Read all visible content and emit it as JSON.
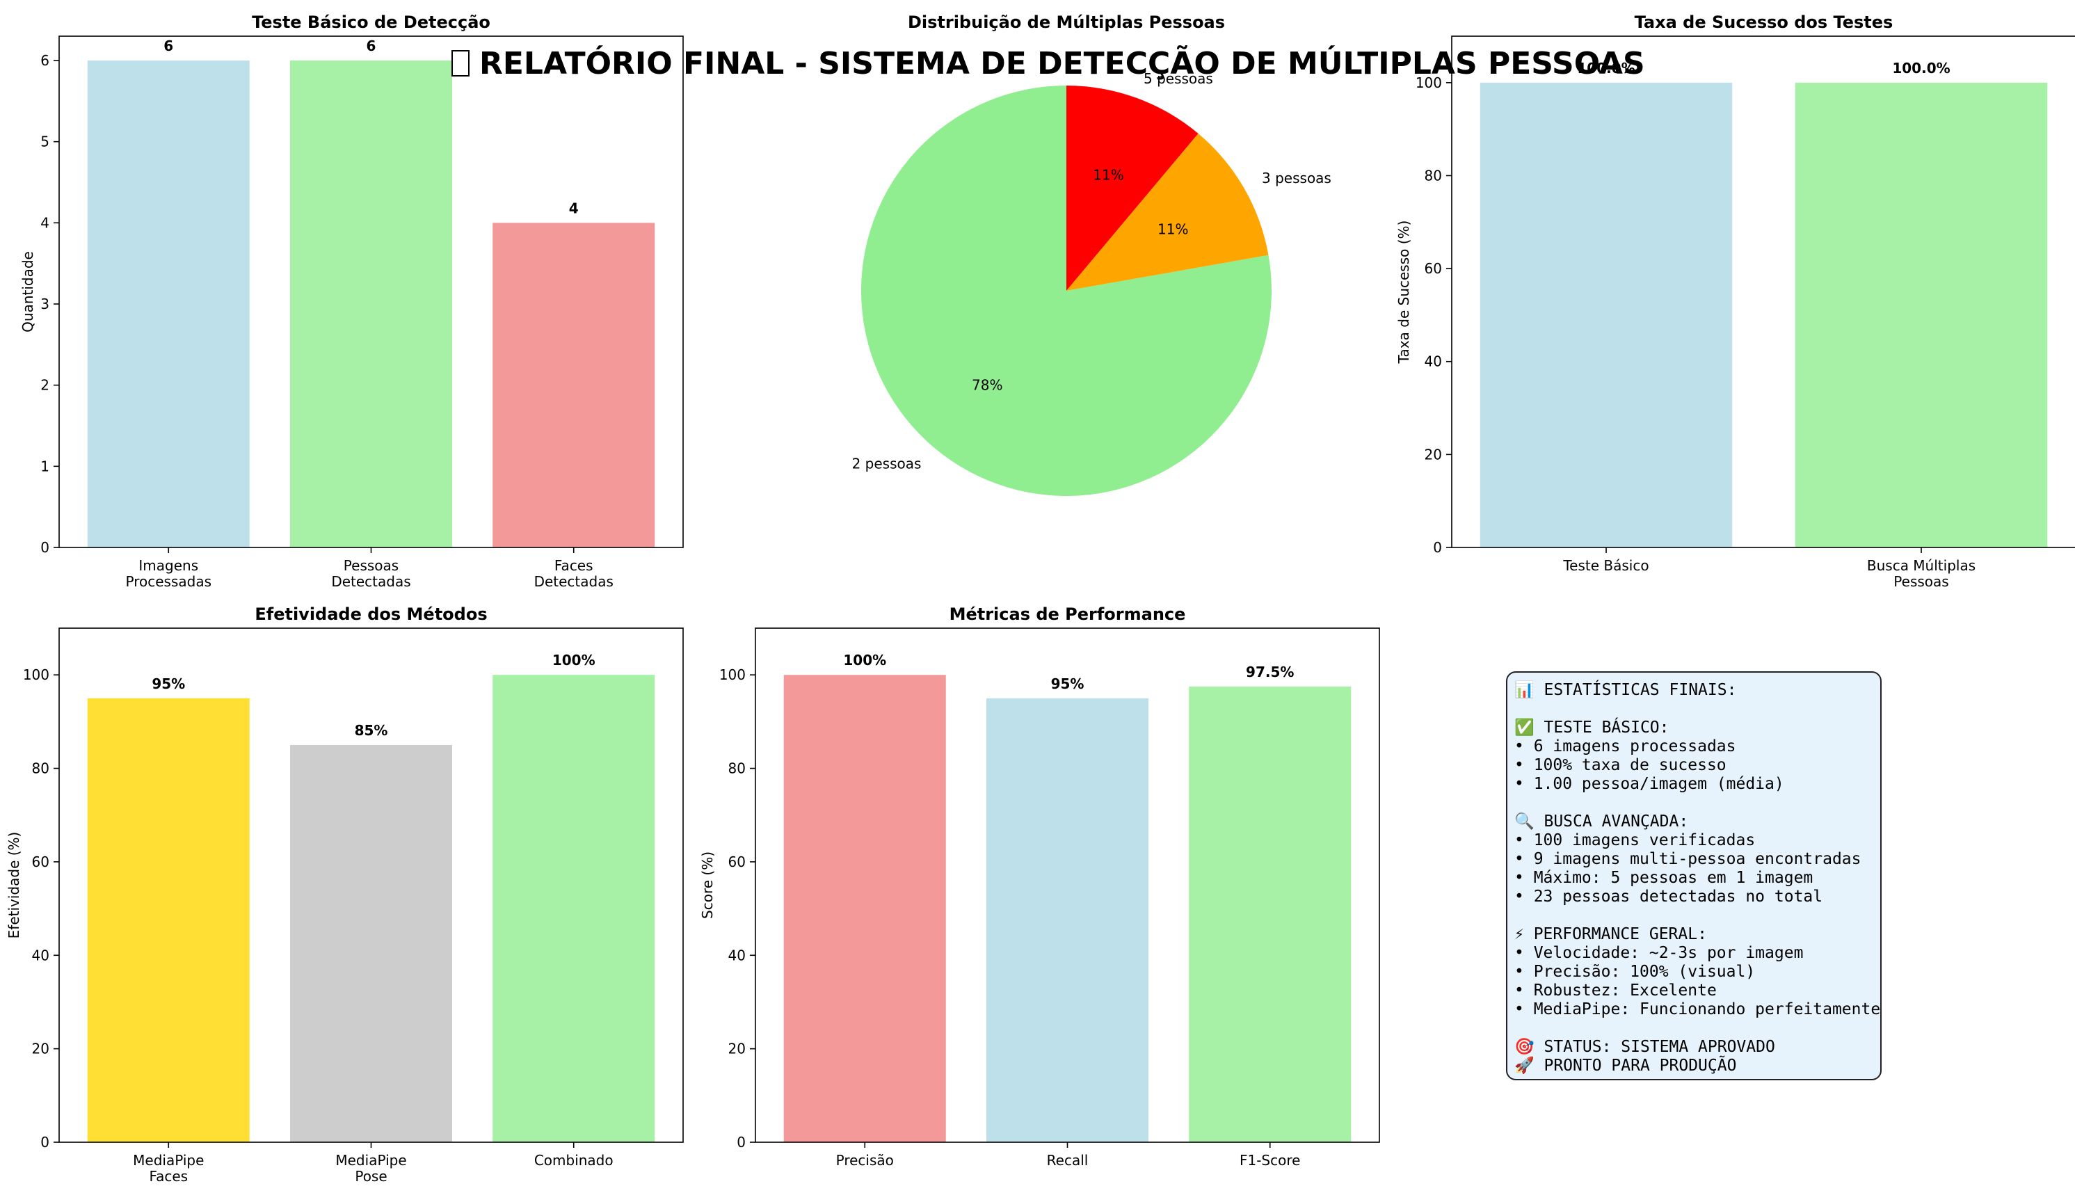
{
  "suptitle": {
    "icon": "chart-icon",
    "text": "RELATÓRIO FINAL - SISTEMA DE DETECÇÃO DE MÚLTIPLAS PESSOAS"
  },
  "chart_data": [
    {
      "id": "deteccao",
      "type": "bar",
      "title": "Teste Básico de Detecção",
      "xlabel": "",
      "ylabel": "Quantidade",
      "categories": [
        "Imagens\nProcessadas",
        "Pessoas\nDetectadas",
        "Faces\nDetectadas"
      ],
      "values": [
        6,
        6,
        4
      ],
      "labels": [
        "6",
        "6",
        "4"
      ],
      "colors": [
        "#add8e6",
        "#90ee90",
        "#f08080"
      ],
      "ylim": [
        0,
        6.3
      ],
      "yticks": [
        0,
        1,
        2,
        3,
        4,
        5,
        6
      ]
    },
    {
      "id": "distribuicao",
      "type": "pie",
      "title": "Distribuição de Múltiplas Pessoas",
      "labels": [
        "5 pessoas",
        "3 pessoas",
        "2 pessoas"
      ],
      "values": [
        1,
        1,
        7
      ],
      "pct_labels": [
        "11%",
        "11%",
        "78%"
      ],
      "colors": [
        "#ff0000",
        "#ffa500",
        "#90ee90"
      ],
      "startangle": 90,
      "direction": "clockwise"
    },
    {
      "id": "sucesso",
      "type": "bar",
      "title": "Taxa de Sucesso dos Testes",
      "xlabel": "",
      "ylabel": "Taxa de Sucesso (%)",
      "categories": [
        "Teste Básico",
        "Busca Múltiplas\nPessoas"
      ],
      "values": [
        100,
        100
      ],
      "labels": [
        "100.0%",
        "100.0%"
      ],
      "colors": [
        "#add8e6",
        "#90ee90"
      ],
      "ylim": [
        0,
        110
      ],
      "yticks": [
        0,
        20,
        40,
        60,
        80,
        100
      ]
    },
    {
      "id": "efetividade",
      "type": "bar",
      "title": "Efetividade dos Métodos",
      "xlabel": "",
      "ylabel": "Efetividade (%)",
      "categories": [
        "MediaPipe\nFaces",
        "MediaPipe\nPose",
        "Combinado"
      ],
      "values": [
        95,
        85,
        100
      ],
      "labels": [
        "95%",
        "85%",
        "100%"
      ],
      "colors": [
        "#ffd700",
        "#c0c0c0",
        "#90ee90"
      ],
      "ylim": [
        0,
        110
      ],
      "yticks": [
        0,
        20,
        40,
        60,
        80,
        100
      ]
    },
    {
      "id": "performance",
      "type": "bar",
      "title": "Métricas de Performance",
      "xlabel": "",
      "ylabel": "Score (%)",
      "categories": [
        "Precisão",
        "Recall",
        "F1-Score"
      ],
      "values": [
        100,
        95,
        97.5
      ],
      "labels": [
        "100%",
        "95%",
        "97.5%"
      ],
      "colors": [
        "#f08080",
        "#add8e6",
        "#90ee90"
      ],
      "ylim": [
        0,
        110
      ],
      "yticks": [
        0,
        20,
        40,
        60,
        80,
        100
      ]
    }
  ],
  "stats_box": {
    "lines": [
      "📊 ESTATÍSTICAS FINAIS:",
      "",
      "✅ TESTE BÁSICO:",
      "• 6 imagens processadas",
      "• 100% taxa de sucesso",
      "• 1.00 pessoa/imagem (média)",
      "",
      "🔍 BUSCA AVANÇADA:",
      "• 100 imagens verificadas",
      "• 9 imagens multi-pessoa encontradas",
      "• Máximo: 5 pessoas em 1 imagem",
      "• 23 pessoas detectadas no total",
      "",
      "⚡ PERFORMANCE GERAL:",
      "• Velocidade: ~2-3s por imagem",
      "• Precisão: 100% (visual)",
      "• Robustez: Excelente",
      "• MediaPipe: Funcionando perfeitamente",
      "",
      "🎯 STATUS: SISTEMA APROVADO",
      "🚀 PRONTO PARA PRODUÇÃO"
    ]
  }
}
